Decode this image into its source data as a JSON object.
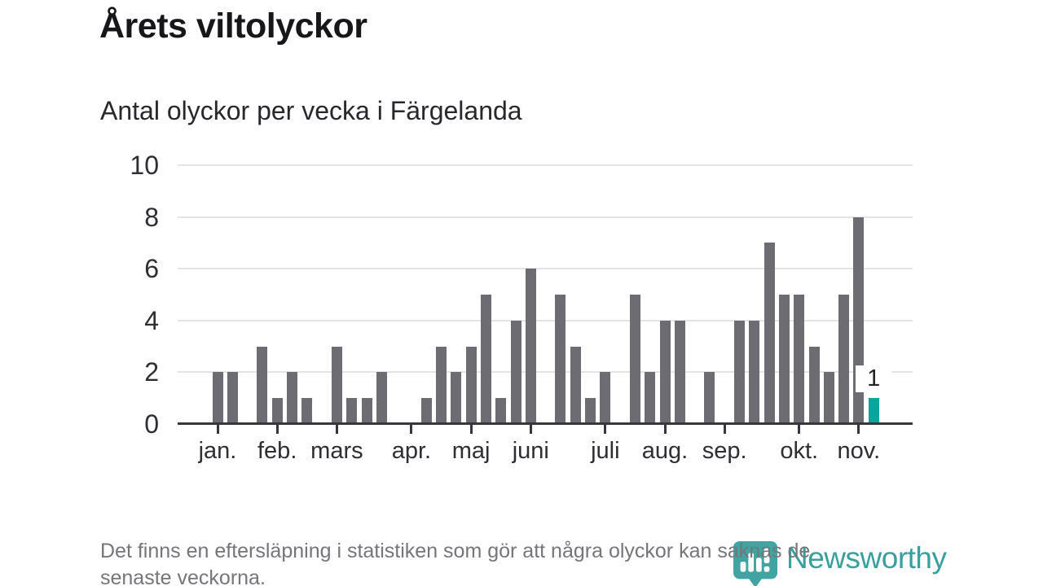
{
  "header": {
    "title": "Årets viltolyckor",
    "subtitle": "Antal olyckor per vecka i Färgelanda"
  },
  "chart_data": {
    "type": "bar",
    "title": "Årets viltolyckor",
    "subtitle": "Antal olyckor per vecka i Färgelanda",
    "x_unit": "vecka (week of year)",
    "n_weeks": 45,
    "values": [
      2,
      2,
      0,
      3,
      1,
      2,
      1,
      0,
      3,
      1,
      1,
      2,
      0,
      0,
      1,
      3,
      2,
      3,
      5,
      1,
      4,
      6,
      0,
      5,
      3,
      1,
      2,
      0,
      5,
      2,
      4,
      4,
      0,
      2,
      0,
      4,
      4,
      7,
      5,
      5,
      3,
      2,
      5,
      8,
      1
    ],
    "highlight_last_bar": true,
    "last_value_label": "1",
    "y_ticks": [
      0,
      2,
      4,
      6,
      8,
      10
    ],
    "ylim": [
      0,
      10
    ],
    "grid": true,
    "legend_position": "none",
    "month_ticks": [
      {
        "label": "jan.",
        "week_index": 0
      },
      {
        "label": "feb.",
        "week_index": 4
      },
      {
        "label": "mars",
        "week_index": 8
      },
      {
        "label": "apr.",
        "week_index": 13
      },
      {
        "label": "maj",
        "week_index": 17
      },
      {
        "label": "juni",
        "week_index": 21
      },
      {
        "label": "juli",
        "week_index": 26
      },
      {
        "label": "aug.",
        "week_index": 30
      },
      {
        "label": "sep.",
        "week_index": 34
      },
      {
        "label": "okt.",
        "week_index": 39
      },
      {
        "label": "nov.",
        "week_index": 43
      }
    ],
    "colors": {
      "bar": "#6c6c72",
      "highlight": "#0aa49e",
      "gridline": "#e4e3e5",
      "axis": "#38383c",
      "tick_label": "#2e2e33"
    }
  },
  "footer": {
    "note": "Det finns en eftersläpning i statistiken som gör att några olyckor kan saknas de\nsenaste veckorna."
  },
  "branding": {
    "name": "Newsworthy",
    "text_color": "#3aa09e",
    "icon_color": "#41a4a2",
    "icon": "newsworthy-pin-barchart-icon"
  }
}
